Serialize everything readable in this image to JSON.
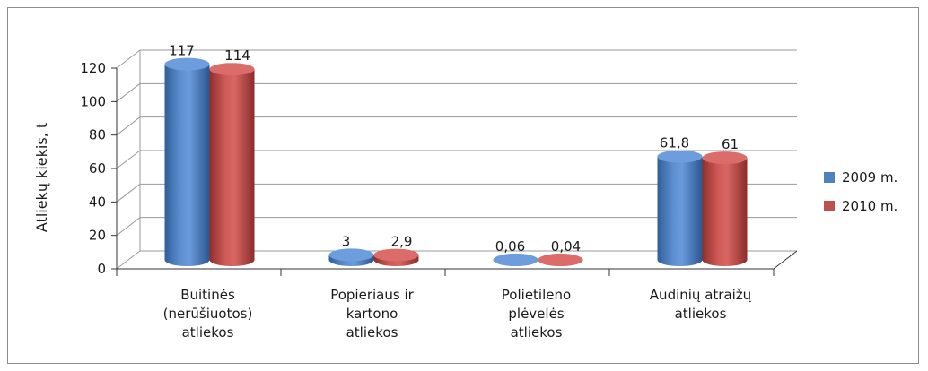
{
  "chart_data": {
    "type": "bar",
    "categories": [
      [
        "Buitinės",
        "(nerūšiuotos)",
        "atliekos"
      ],
      [
        "Popieriaus ir",
        "kartono",
        "atliekos"
      ],
      [
        "Polietileno",
        "plėvelės",
        "atliekos"
      ],
      [
        "Audinių atraižų",
        "atliekos"
      ]
    ],
    "series": [
      {
        "name": "2009 m.",
        "values": [
          117,
          3,
          0.06,
          61.8
        ],
        "labels": [
          "117",
          "3",
          "0,06",
          "61,8"
        ],
        "color": "#4f81bd"
      },
      {
        "name": "2010 m.",
        "values": [
          114,
          2.9,
          0.04,
          61
        ],
        "labels": [
          "114",
          "2,9",
          "0,04",
          "61"
        ],
        "color": "#c0504d"
      }
    ],
    "ylabel": "Atliekų kiekis, t",
    "xlabel": "",
    "title": "",
    "ylim": [
      0,
      120
    ],
    "yticks": [
      0,
      20,
      40,
      60,
      80,
      100,
      120
    ],
    "grid": true,
    "legend_position": "right"
  }
}
